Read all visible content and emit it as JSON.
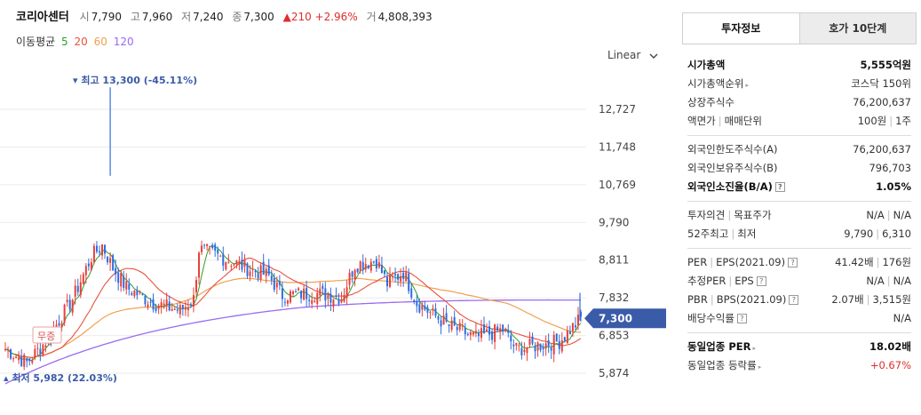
{
  "header": {
    "name": "코리아센터",
    "open_label": "시",
    "open": "7,790",
    "high_label": "고",
    "high": "7,960",
    "low_label": "저",
    "low": "7,240",
    "close_label": "종",
    "close": "7,300",
    "change_arrow": "▲",
    "change": "210",
    "change_pct": "+2.96%",
    "volume_label": "거",
    "volume": "4,808,393"
  },
  "ma_legend": {
    "label": "이동평균",
    "periods": [
      "5",
      "20",
      "60",
      "120"
    ],
    "colors": [
      "#2e9e2e",
      "#e8523c",
      "#f0a050",
      "#9b6bf0"
    ]
  },
  "scale_select": {
    "label": "Linear",
    "icon": "chevron-down-icon"
  },
  "chart_data": {
    "type": "candlestick",
    "y_ticks": [
      "12,727",
      "11,748",
      "10,769",
      "9,790",
      "8,811",
      "7,832",
      "6,853",
      "5,874"
    ],
    "y_tick_values": [
      12727,
      11748,
      10769,
      9790,
      8811,
      7832,
      6853,
      5874
    ],
    "ylim": [
      5400,
      14100
    ],
    "current_price_label": "7,300",
    "current_price": 7300,
    "high_annotation": "최고 13,300 (-45.11%)",
    "low_annotation": "최저 5,982 (22.03%)",
    "event_label": "무증",
    "up_color": "#e8403a",
    "down_color": "#2f6ce0",
    "accent_color": "#3a5ba8"
  },
  "panel": {
    "tabs": [
      "투자정보",
      "호가 10단계"
    ],
    "groups": [
      [
        {
          "k": "시가총액",
          "v": "5,555억원",
          "bold": true
        },
        {
          "k": "시가총액순위",
          "v": "코스닥 150위",
          "arrow": true
        },
        {
          "k": "상장주식수",
          "v": "76,200,637"
        },
        {
          "k": "액면가",
          "k2": "매매단위",
          "v": "100원",
          "v2": "1주"
        }
      ],
      [
        {
          "k": "외국인한도주식수(A)",
          "v": "76,200,637"
        },
        {
          "k": "외국인보유주식수(B)",
          "v": "796,703"
        },
        {
          "k": "외국인소진율(B/A)",
          "v": "1.05%",
          "bold": true,
          "help": true
        }
      ],
      [
        {
          "k": "투자의견",
          "k2": "목표주가",
          "v": "N/A",
          "v2": "N/A"
        },
        {
          "k": "52주최고",
          "k2": "최저",
          "v": "9,790",
          "v2": "6,310"
        }
      ],
      [
        {
          "k": "PER",
          "k2": "EPS(2021.09)",
          "v": "41.42배",
          "v2": "176원",
          "help": true
        },
        {
          "k": "추정PER",
          "k2": "EPS",
          "v": "N/A",
          "v2": "N/A",
          "help": true
        },
        {
          "k": "PBR",
          "k2": "BPS(2021.09)",
          "v": "2.07배",
          "v2": "3,515원",
          "help": true
        },
        {
          "k": "배당수익률",
          "v": "N/A",
          "help": true
        }
      ],
      [
        {
          "k": "동일업종 PER",
          "v": "18.02배",
          "bold": true,
          "arrow": true
        },
        {
          "k": "동일업종 등락률",
          "v": "+0.67%",
          "arrow": true,
          "red": true
        }
      ]
    ]
  }
}
